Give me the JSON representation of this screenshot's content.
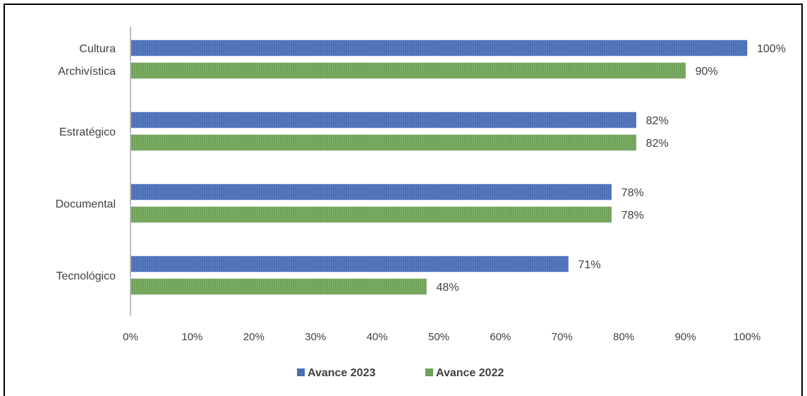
{
  "chart_data": {
    "type": "bar",
    "orientation": "horizontal",
    "categories": [
      [
        "Cultura",
        "Archivística"
      ],
      [
        "Estratégico"
      ],
      [
        "Documental"
      ],
      [
        "Tecnológico"
      ]
    ],
    "series": [
      {
        "name": "Avance 2023",
        "values": [
          100,
          82,
          78,
          71
        ],
        "labels": [
          "100%",
          "82%",
          "78%",
          "71%"
        ],
        "color": "#4a6fb5"
      },
      {
        "name": "Avance 2022",
        "values": [
          90,
          82,
          78,
          48
        ],
        "labels": [
          "90%",
          "82%",
          "78%",
          "48%"
        ],
        "color": "#6fa158"
      }
    ],
    "x_ticks": [
      "0%",
      "10%",
      "20%",
      "30%",
      "40%",
      "50%",
      "60%",
      "70%",
      "80%",
      "90%",
      "100%"
    ],
    "xlim": [
      0,
      100
    ],
    "grid": false,
    "legend_position": "bottom"
  }
}
